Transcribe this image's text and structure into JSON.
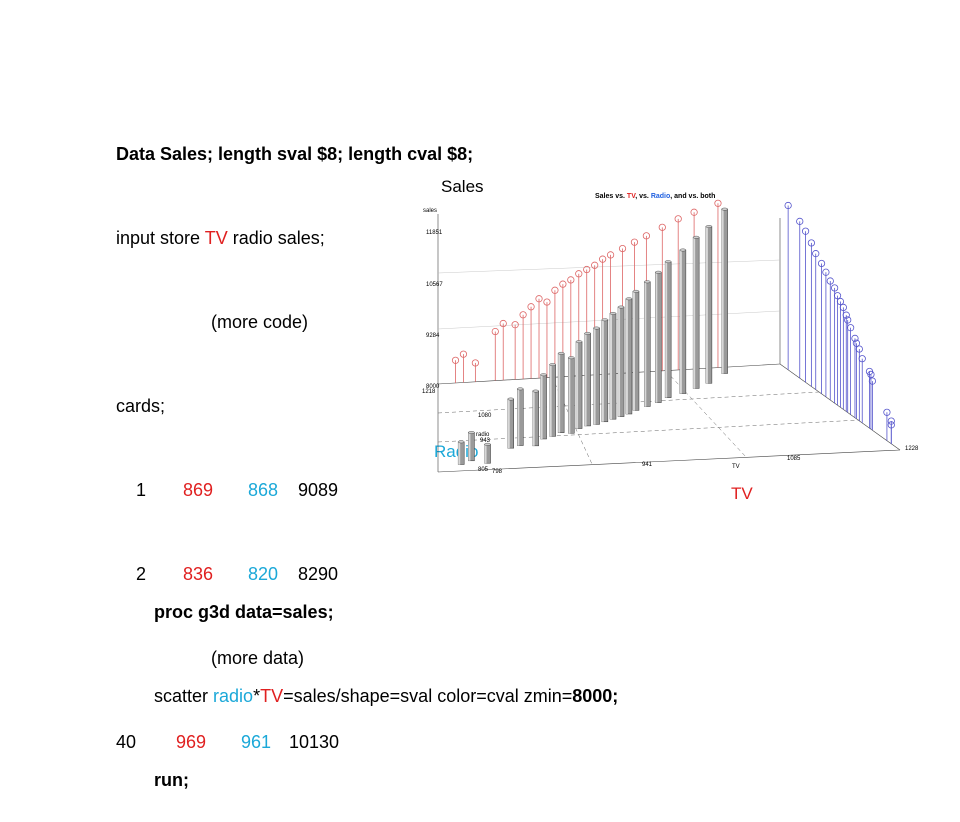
{
  "code_block": {
    "line1": "Data Sales; length sval $8; length cval $8;",
    "line2_pre": "input store ",
    "line2_tv": "TV",
    "line2_post": " radio sales;",
    "line3": "(more code)",
    "line4": "cards;",
    "rows": [
      {
        "store": "1",
        "tv": "869",
        "radio": "868",
        "sales": "9089"
      },
      {
        "store": "2",
        "tv": "836",
        "radio": "820",
        "sales": "8290"
      }
    ],
    "more_data": "(more data)",
    "last_row": {
      "store": "40",
      "tv": "969",
      "radio": "961",
      "sales": "10130"
    }
  },
  "proc_block": {
    "line1": "proc g3d data=sales;",
    "line2_pre": "scatter ",
    "line2_radio": "radio",
    "line2_star": "*",
    "line2_tv": "TV",
    "line2_mid": "=sales/shape=sval color=cval zmin=",
    "line2_zmin": "8000;",
    "line3": "run;"
  },
  "labels": {
    "sales": "Sales",
    "radio": "Radio",
    "tv": "TV"
  },
  "colors": {
    "tv": "#e02020",
    "radio": "#1ba8d8",
    "red_stems": "#d66",
    "blue_stems": "#55c",
    "bars": "#9a9a9a"
  },
  "chart_data": {
    "type": "scatter",
    "title_parts": {
      "a": "Sales vs. ",
      "tv": "TV",
      "b": ", vs. ",
      "radio": "Radio",
      "c": ", and vs. both"
    },
    "zlabel": "sales",
    "ylabel": "radio",
    "xlabel": "TV",
    "z_ticks": [
      "11851",
      "10567",
      "9284",
      "8000"
    ],
    "y_ticks": [
      "1218",
      "1080",
      "943",
      "805"
    ],
    "x_ticks": [
      "798",
      "941",
      "1085",
      "1228"
    ],
    "zlim": [
      8000,
      12500
    ],
    "tv_range": [
      798,
      1228
    ],
    "radio_range": [
      805,
      1218
    ],
    "bars": [
      {
        "tv": 820,
        "radio": 835,
        "sales": 8600
      },
      {
        "tv": 830,
        "radio": 850,
        "sales": 8750
      },
      {
        "tv": 845,
        "radio": 835,
        "sales": 8500
      },
      {
        "tv": 870,
        "radio": 900,
        "sales": 9300
      },
      {
        "tv": 880,
        "radio": 910,
        "sales": 9500
      },
      {
        "tv": 895,
        "radio": 905,
        "sales": 9450
      },
      {
        "tv": 905,
        "radio": 935,
        "sales": 9700
      },
      {
        "tv": 915,
        "radio": 945,
        "sales": 9900
      },
      {
        "tv": 925,
        "radio": 960,
        "sales": 10100
      },
      {
        "tv": 935,
        "radio": 955,
        "sales": 10000
      },
      {
        "tv": 945,
        "radio": 975,
        "sales": 10300
      },
      {
        "tv": 955,
        "radio": 985,
        "sales": 10450
      },
      {
        "tv": 965,
        "radio": 990,
        "sales": 10550
      },
      {
        "tv": 975,
        "radio": 1000,
        "sales": 10700
      },
      {
        "tv": 985,
        "radio": 1010,
        "sales": 10800
      },
      {
        "tv": 995,
        "radio": 1020,
        "sales": 10900
      },
      {
        "tv": 1005,
        "radio": 1030,
        "sales": 11050
      },
      {
        "tv": 1015,
        "radio": 1045,
        "sales": 11150
      },
      {
        "tv": 1030,
        "radio": 1060,
        "sales": 11300
      },
      {
        "tv": 1045,
        "radio": 1075,
        "sales": 11450
      },
      {
        "tv": 1060,
        "radio": 1095,
        "sales": 11600
      },
      {
        "tv": 1080,
        "radio": 1110,
        "sales": 11800
      },
      {
        "tv": 1100,
        "radio": 1130,
        "sales": 12000
      },
      {
        "tv": 1120,
        "radio": 1150,
        "sales": 12150
      },
      {
        "tv": 1150,
        "radio": 1190,
        "sales": 12350
      }
    ]
  }
}
